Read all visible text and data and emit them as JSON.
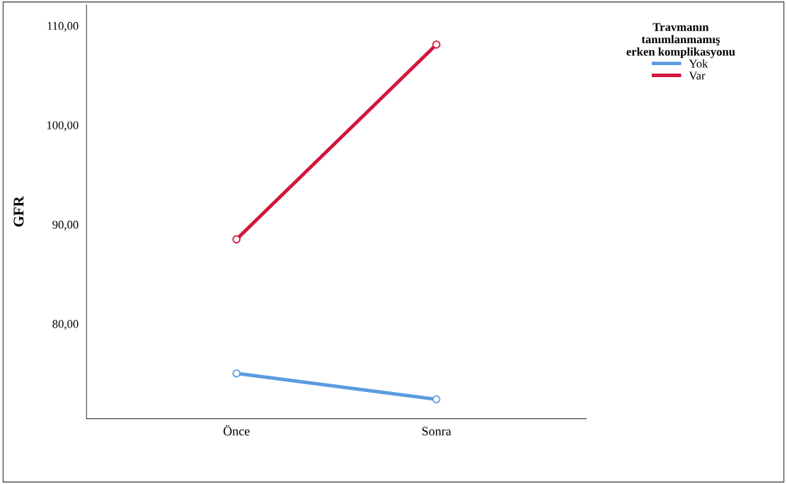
{
  "chart_data": {
    "type": "line",
    "ylabel": "GFR",
    "legend_title": "Travmanın\ntanımlanmamış\nerken komplikasyonu",
    "categories": [
      "Önce",
      "Sonra"
    ],
    "series": [
      {
        "name": "Yok",
        "color": "#5b9bdf",
        "values": [
          75.0,
          72.4
        ]
      },
      {
        "name": "Var",
        "color": "#d2163c",
        "values": [
          88.5,
          108.1
        ]
      }
    ],
    "ylim": [
      70.45,
      112.1
    ],
    "yticks": [
      {
        "value": 80,
        "label": "80,00"
      },
      {
        "value": 90,
        "label": "90,00"
      },
      {
        "value": 100,
        "label": "100,00"
      },
      {
        "value": 110,
        "label": "110,00"
      }
    ],
    "marker": "circle",
    "grid": false,
    "legend": "top right"
  }
}
